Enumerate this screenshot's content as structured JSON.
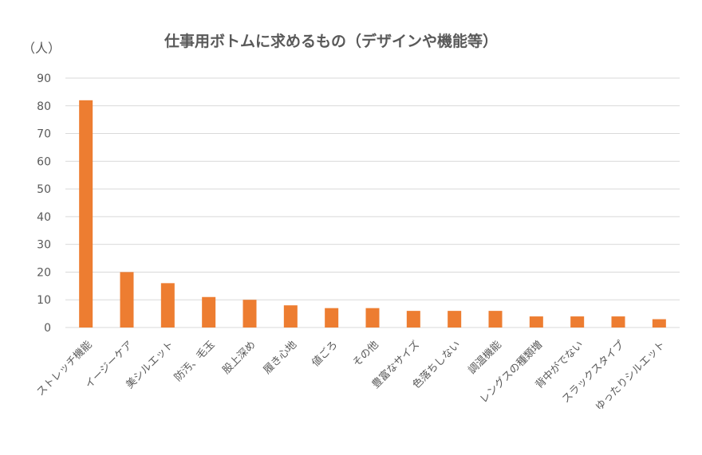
{
  "chart_data": {
    "type": "bar",
    "title": "仕事用ボトムに求めるもの（デザインや機能等）",
    "ylabel": "（人）",
    "xlabel": "",
    "ylim": [
      0,
      90
    ],
    "yticks": [
      0,
      10,
      20,
      30,
      40,
      50,
      60,
      70,
      80,
      90
    ],
    "grid": true,
    "legend": "none",
    "bar_color": "#ED7D31",
    "categories": [
      "ストレッチ機能",
      "イージーケア",
      "美シルエット",
      "防汚、毛玉",
      "股上深め",
      "履き心地",
      "値ごろ",
      "その他",
      "豊富なサイズ",
      "色落ちしない",
      "調温機能",
      "レングスの種類増",
      "背中がでない",
      "スラックスタイプ",
      "ゆったりシルエット"
    ],
    "values": [
      82,
      20,
      16,
      11,
      10,
      8,
      7,
      7,
      6,
      6,
      6,
      4,
      4,
      4,
      3
    ]
  }
}
